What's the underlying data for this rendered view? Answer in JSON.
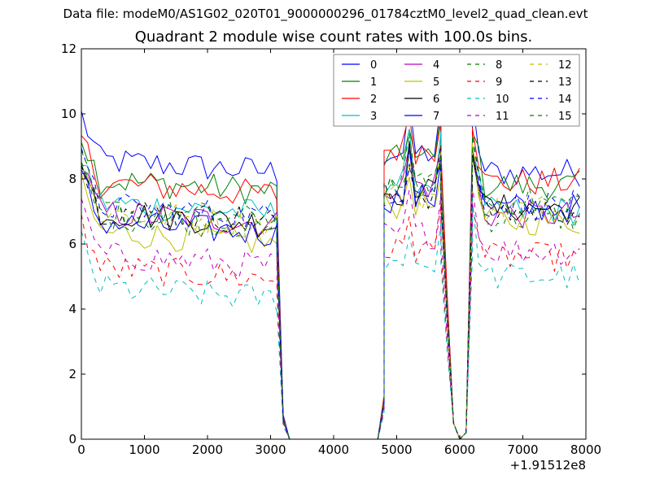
{
  "figure": {
    "supertitle": "Data file: modeM0/AS1G02_020T01_9000000296_01784cztM0_level2_quad_clean.evt",
    "title": "Quadrant 2 module wise count rates with 100.0s bins."
  },
  "chart_data": {
    "type": "line",
    "title": "Quadrant 2 module wise count rates with 100.0s bins.",
    "xlabel": "",
    "ylabel": "",
    "xlim": [
      0,
      8000
    ],
    "ylim": [
      0,
      12
    ],
    "x_offset_label": "+1.91512e8",
    "xticks": [
      0,
      1000,
      2000,
      3000,
      4000,
      5000,
      6000,
      7000,
      8000
    ],
    "xtick_labels": [
      "0",
      "1000",
      "2000",
      "3000",
      "4000",
      "5000",
      "6000",
      "7000",
      "8000"
    ],
    "yticks": [
      0,
      2,
      4,
      6,
      8,
      10,
      12
    ],
    "ytick_labels": [
      "0",
      "2",
      "4",
      "6",
      "8",
      "10",
      "12"
    ],
    "grid": false,
    "legend_position": "top-right",
    "legend_columns": 4,
    "segments": [
      {
        "x_start": 0,
        "x_end": 3100,
        "n_points": 32
      },
      {
        "x_start": 4800,
        "x_end": 5700,
        "n_points": 10
      },
      {
        "x_start": 6200,
        "x_end": 7900,
        "n_points": 18
      }
    ],
    "gaps": [
      {
        "x": [
          3100,
          3200,
          3300,
          4700,
          4800
        ],
        "y": [
          6.8,
          0.7,
          0,
          0,
          1.2
        ]
      },
      {
        "x": [
          5700,
          5800,
          5900,
          6000,
          6100,
          6200
        ],
        "y": [
          8.0,
          4.0,
          0.5,
          0,
          0.2,
          9.0
        ]
      }
    ],
    "series": [
      {
        "name": "0",
        "color": "#0000ff",
        "dash": "solid",
        "level1": 8.6,
        "level2": 8.8,
        "level3": 8.2
      },
      {
        "name": "1",
        "color": "#008000",
        "dash": "solid",
        "level1": 8.0,
        "level2": 8.6,
        "level3": 7.8
      },
      {
        "name": "2",
        "color": "#ff0000",
        "dash": "solid",
        "level1": 7.9,
        "level2": 8.9,
        "level3": 7.9
      },
      {
        "name": "3",
        "color": "#00bfbf",
        "dash": "solid",
        "level1": 7.3,
        "level2": 7.9,
        "level3": 7.0
      },
      {
        "name": "4",
        "color": "#bf00bf",
        "dash": "solid",
        "level1": 7.0,
        "level2": 7.8,
        "level3": 6.9
      },
      {
        "name": "5",
        "color": "#bfbf00",
        "dash": "solid",
        "level1": 6.4,
        "level2": 7.2,
        "level3": 6.7
      },
      {
        "name": "6",
        "color": "#000000",
        "dash": "solid",
        "level1": 7.0,
        "level2": 7.6,
        "level3": 7.1
      },
      {
        "name": "7",
        "color": "#0000ff",
        "dash": "solid",
        "level1": 6.7,
        "level2": 7.4,
        "level3": 7.1
      },
      {
        "name": "8",
        "color": "#008000",
        "dash": "dashed",
        "level1": 6.9,
        "level2": 7.8,
        "level3": 6.8
      },
      {
        "name": "9",
        "color": "#ff0000",
        "dash": "dashed",
        "level1": 5.3,
        "level2": 5.8,
        "level3": 5.6
      },
      {
        "name": "10",
        "color": "#00bfbf",
        "dash": "dashed",
        "level1": 4.7,
        "level2": 5.4,
        "level3": 5.0
      },
      {
        "name": "11",
        "color": "#bf00bf",
        "dash": "dashed",
        "level1": 5.7,
        "level2": 6.3,
        "level3": 5.8
      },
      {
        "name": "12",
        "color": "#bfbf00",
        "dash": "dashed",
        "level1": 7.0,
        "level2": 7.5,
        "level3": 7.1
      },
      {
        "name": "13",
        "color": "#000000",
        "dash": "dashed",
        "level1": 7.1,
        "level2": 7.5,
        "level3": 7.0
      },
      {
        "name": "14",
        "color": "#0000ff",
        "dash": "dashed",
        "level1": 7.2,
        "level2": 7.6,
        "level3": 7.2
      },
      {
        "name": "15",
        "color": "#008000",
        "dash": "dashed",
        "level1": 7.1,
        "level2": 7.8,
        "level3": 7.3
      }
    ]
  }
}
